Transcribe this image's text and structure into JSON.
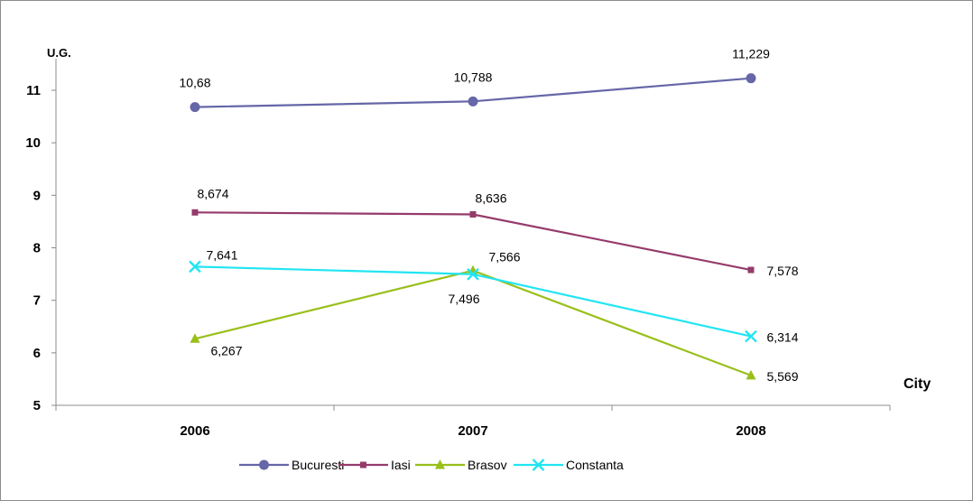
{
  "chart_data": {
    "type": "line",
    "categories": [
      "2006",
      "2007",
      "2008"
    ],
    "ylabel": "U.G.",
    "xlabel": "City",
    "ylim": [
      5,
      11.6
    ],
    "yticks": [
      5,
      6,
      7,
      8,
      9,
      10,
      11
    ],
    "grid": false,
    "legend_position": "bottom",
    "series": [
      {
        "name": "Bucuresti",
        "values": [
          10.68,
          10.788,
          11.229
        ],
        "labels": [
          "10,68",
          "10,788",
          "11,229"
        ],
        "color": "#6666a8",
        "marker": "circle"
      },
      {
        "name": "Iasi",
        "values": [
          8.674,
          8.636,
          7.578
        ],
        "labels": [
          "8,674",
          "8,636",
          "7,578"
        ],
        "color": "#953b6b",
        "marker": "square"
      },
      {
        "name": "Brasov",
        "values": [
          6.267,
          7.566,
          5.569
        ],
        "labels": [
          "6,267",
          "7,566",
          "5,569"
        ],
        "color": "#99bf1a",
        "marker": "triangle"
      },
      {
        "name": "Constanta",
        "values": [
          7.641,
          7.496,
          6.314
        ],
        "labels": [
          "7,641",
          "7,496",
          "6,314"
        ],
        "color": "#21e5f2",
        "marker": "x"
      }
    ]
  }
}
